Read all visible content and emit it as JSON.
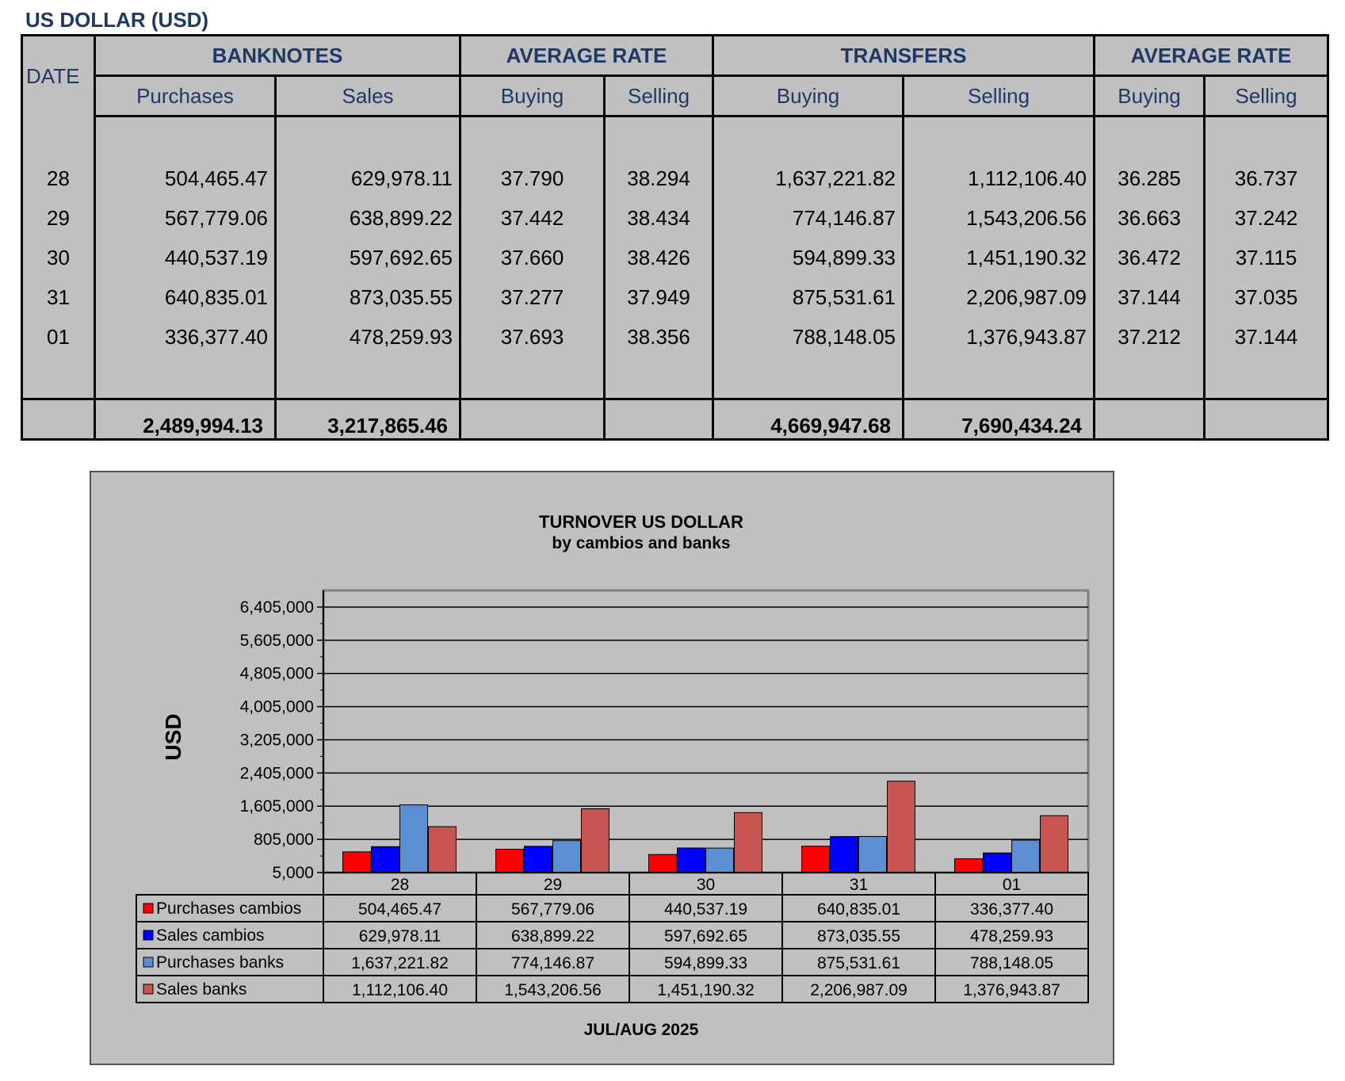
{
  "page_title": "US DOLLAR (USD)",
  "table": {
    "header1": {
      "date": "DATE",
      "banknotes": "BANKNOTES",
      "avg_rate_1": "AVERAGE RATE",
      "transfers": "TRANSFERS",
      "avg_rate_2": "AVERAGE RATE"
    },
    "header2": {
      "purchases": "Purchases",
      "sales": "Sales",
      "buying_1": "Buying",
      "selling_1": "Selling",
      "buying_2": "Buying",
      "selling_2": "Selling",
      "buying_3": "Buying",
      "selling_3": "Selling"
    },
    "rows": [
      {
        "date": "28",
        "bn_purchases": "504,465.47",
        "bn_sales": "629,978.11",
        "bn_buy_rate": "37.790",
        "bn_sell_rate": "38.294",
        "tr_buying": "1,637,221.82",
        "tr_selling": "1,112,106.40",
        "tr_buy_rate": "36.285",
        "tr_sell_rate": "36.737"
      },
      {
        "date": "29",
        "bn_purchases": "567,779.06",
        "bn_sales": "638,899.22",
        "bn_buy_rate": "37.442",
        "bn_sell_rate": "38.434",
        "tr_buying": "774,146.87",
        "tr_selling": "1,543,206.56",
        "tr_buy_rate": "36.663",
        "tr_sell_rate": "37.242"
      },
      {
        "date": "30",
        "bn_purchases": "440,537.19",
        "bn_sales": "597,692.65",
        "bn_buy_rate": "37.660",
        "bn_sell_rate": "38.426",
        "tr_buying": "594,899.33",
        "tr_selling": "1,451,190.32",
        "tr_buy_rate": "36.472",
        "tr_sell_rate": "37.115"
      },
      {
        "date": "31",
        "bn_purchases": "640,835.01",
        "bn_sales": "873,035.55",
        "bn_buy_rate": "37.277",
        "bn_sell_rate": "37.949",
        "tr_buying": "875,531.61",
        "tr_selling": "2,206,987.09",
        "tr_buy_rate": "37.144",
        "tr_sell_rate": "37.035"
      },
      {
        "date": "01",
        "bn_purchases": "336,377.40",
        "bn_sales": "478,259.93",
        "bn_buy_rate": "37.693",
        "bn_sell_rate": "38.356",
        "tr_buying": "788,148.05",
        "tr_selling": "1,376,943.87",
        "tr_buy_rate": "37.212",
        "tr_sell_rate": "37.144"
      }
    ],
    "totals": {
      "bn_purchases": "2,489,994.13",
      "bn_sales": "3,217,865.46",
      "tr_buying": "4,669,947.68",
      "tr_selling": "7,690,434.24"
    }
  },
  "chart_data": {
    "type": "bar",
    "title": "TURNOVER US DOLLAR",
    "subtitle": "by cambios and banks",
    "ylabel": "USD",
    "xlabel": "JUL/AUG 2025",
    "categories": [
      "28",
      "29",
      "30",
      "31",
      "01"
    ],
    "ylim": [
      5000,
      6805000
    ],
    "yticks": [
      5000,
      805000,
      1605000,
      2405000,
      3205000,
      4005000,
      4805000,
      5605000,
      6405000
    ],
    "ytick_labels": [
      "5,000",
      "805,000",
      "1,605,000",
      "2,405,000",
      "3,205,000",
      "4,005,000",
      "4,805,000",
      "5,605,000",
      "6,405,000"
    ],
    "grid": true,
    "legend": "data-table",
    "series": [
      {
        "name": "Purchases cambios",
        "color": "#ff0000",
        "values": [
          504465.47,
          567779.06,
          440537.19,
          640835.01,
          336377.4
        ],
        "labels": [
          "504,465.47",
          "567,779.06",
          "440,537.19",
          "640,835.01",
          "336,377.40"
        ]
      },
      {
        "name": "Sales cambios",
        "color": "#0000ff",
        "values": [
          629978.11,
          638899.22,
          597692.65,
          873035.55,
          478259.93
        ],
        "labels": [
          "629,978.11",
          "638,899.22",
          "597,692.65",
          "873,035.55",
          "478,259.93"
        ]
      },
      {
        "name": "Purchases banks",
        "color": "#5b8fd2",
        "values": [
          1637221.82,
          774146.87,
          594899.33,
          875531.61,
          788148.05
        ],
        "labels": [
          "1,637,221.82",
          "774,146.87",
          "594,899.33",
          "875,531.61",
          "788,148.05"
        ]
      },
      {
        "name": "Sales banks",
        "color": "#c85452",
        "values": [
          1112106.4,
          1543206.56,
          1451190.32,
          2206987.09,
          1376943.87
        ],
        "labels": [
          "1,112,106.40",
          "1,543,206.56",
          "1,451,190.32",
          "2,206,987.09",
          "1,376,943.87"
        ]
      }
    ]
  }
}
